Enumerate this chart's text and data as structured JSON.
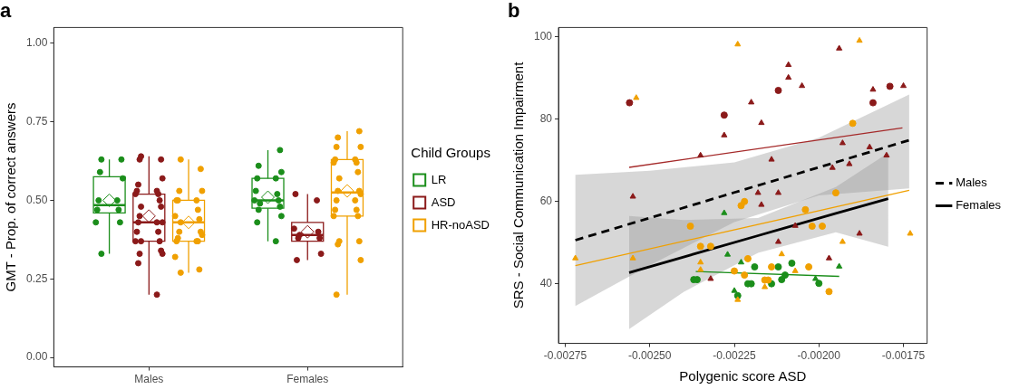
{
  "chart_data": [
    {
      "type": "box",
      "title": "a",
      "ylabel": "GMT - Prop. of correct answers",
      "legend_title": "Child Groups",
      "legend": "right",
      "categories": [
        "Males",
        "Females"
      ],
      "ylim": [
        -0.03,
        1.05
      ],
      "yticks": [
        {
          "value": 0,
          "label": "0.00"
        },
        {
          "value": 0.25,
          "label": "0.25"
        },
        {
          "value": 0.5,
          "label": "0.50"
        },
        {
          "value": 0.75,
          "label": "0.75"
        },
        {
          "value": 1,
          "label": "1.00"
        }
      ],
      "series": [
        {
          "name": "LR",
          "color": "#1b8e1b",
          "boxes": [
            {
              "low": 0.33,
              "q1": 0.46,
              "median": 0.485,
              "q3": 0.575,
              "high": 0.63,
              "mean": 0.5
            },
            {
              "low": 0.37,
              "q1": 0.475,
              "median": 0.5,
              "q3": 0.57,
              "high": 0.66,
              "mean": 0.51
            }
          ]
        },
        {
          "name": "ASD",
          "color": "#8b1a1a",
          "boxes": [
            {
              "low": 0.2,
              "q1": 0.37,
              "median": 0.43,
              "q3": 0.52,
              "high": 0.64,
              "mean": 0.45
            },
            {
              "low": 0.31,
              "q1": 0.37,
              "median": 0.39,
              "q3": 0.43,
              "high": 0.52,
              "mean": 0.4
            }
          ]
        },
        {
          "name": "HR-noASD",
          "color": "#f0a000",
          "boxes": [
            {
              "low": 0.27,
              "q1": 0.37,
              "median": 0.43,
              "q3": 0.5,
              "high": 0.63,
              "mean": 0.43
            },
            {
              "low": 0.2,
              "q1": 0.45,
              "median": 0.525,
              "q3": 0.63,
              "high": 0.72,
              "mean": 0.53
            }
          ]
        },
        {
          "type": "scatter",
          "color": "#1b8e1b",
          "x": [
            "Males",
            "Males",
            "Males",
            "Males",
            "Males",
            "Males",
            "Males",
            "Males",
            "Males",
            "Males",
            "Males",
            "Females",
            "Females",
            "Females",
            "Females",
            "Females",
            "Females",
            "Females",
            "Females",
            "Females",
            "Females",
            "Females",
            "Females",
            "Females",
            "Females",
            "Females"
          ],
          "values": [
            0.63,
            0.63,
            0.59,
            0.57,
            0.5,
            0.5,
            0.47,
            0.47,
            0.43,
            0.43,
            0.33,
            0.66,
            0.61,
            0.59,
            0.57,
            0.57,
            0.53,
            0.52,
            0.5,
            0.5,
            0.49,
            0.48,
            0.47,
            0.45,
            0.43,
            0.37
          ]
        },
        {
          "type": "scatter",
          "color": "#8b1a1a",
          "x": [
            "Males",
            "Males",
            "Males",
            "Males",
            "Males",
            "Males",
            "Males",
            "Males",
            "Males",
            "Males",
            "Males",
            "Males",
            "Males",
            "Males",
            "Males",
            "Males",
            "Males",
            "Males",
            "Males",
            "Males",
            "Males",
            "Males",
            "Males",
            "Males",
            "Males",
            "Males",
            "Females",
            "Females",
            "Females",
            "Females",
            "Females",
            "Females",
            "Females",
            "Females",
            "Females"
          ],
          "values": [
            0.64,
            0.63,
            0.63,
            0.57,
            0.55,
            0.53,
            0.53,
            0.52,
            0.52,
            0.5,
            0.48,
            0.48,
            0.45,
            0.43,
            0.43,
            0.43,
            0.4,
            0.4,
            0.37,
            0.37,
            0.37,
            0.34,
            0.33,
            0.33,
            0.3,
            0.2,
            0.52,
            0.5,
            0.41,
            0.4,
            0.39,
            0.38,
            0.38,
            0.33,
            0.31
          ]
        },
        {
          "type": "scatter",
          "color": "#f0a000",
          "x": [
            "Males",
            "Males",
            "Males",
            "Males",
            "Males",
            "Males",
            "Males",
            "Males",
            "Males",
            "Males",
            "Males",
            "Males",
            "Males",
            "Males",
            "Males",
            "Males",
            "Males",
            "Males",
            "Males",
            "Males",
            "Males",
            "Females",
            "Females",
            "Females",
            "Females",
            "Females",
            "Females",
            "Females",
            "Females",
            "Females",
            "Females",
            "Females",
            "Females",
            "Females",
            "Females",
            "Females",
            "Females",
            "Females",
            "Females",
            "Females",
            "Females",
            "Females",
            "Females",
            "Females",
            "Females"
          ],
          "values": [
            0.63,
            0.6,
            0.53,
            0.53,
            0.5,
            0.5,
            0.5,
            0.47,
            0.45,
            0.44,
            0.43,
            0.4,
            0.4,
            0.39,
            0.38,
            0.37,
            0.37,
            0.37,
            0.32,
            0.28,
            0.27,
            0.72,
            0.7,
            0.67,
            0.67,
            0.63,
            0.63,
            0.62,
            0.62,
            0.59,
            0.57,
            0.53,
            0.53,
            0.52,
            0.5,
            0.5,
            0.47,
            0.47,
            0.45,
            0.45,
            0.37,
            0.37,
            0.36,
            0.31,
            0.2
          ]
        }
      ]
    },
    {
      "type": "scatter",
      "title": "b",
      "xlabel": "Polygenic score ASD",
      "ylabel": "SRS - Social Communication Impairment",
      "legend": "right",
      "xlim": [
        -0.00277,
        -0.00168
      ],
      "ylim": [
        25.5,
        102.3
      ],
      "xticks": [
        {
          "value": -0.00275,
          "label": "-0.00275"
        },
        {
          "value": -0.0025,
          "label": "-0.00250"
        },
        {
          "value": -0.00225,
          "label": "-0.00225"
        },
        {
          "value": -0.002,
          "label": "-0.00200"
        },
        {
          "value": -0.00175,
          "label": "-0.00175"
        }
      ],
      "yticks": [
        40,
        60,
        80,
        100
      ],
      "series": [
        {
          "type": "line",
          "name": "Males",
          "color": "#000000",
          "line_style": "dashed",
          "x": [
            -0.00272,
            -0.0025,
            -0.00225,
            -0.002,
            -0.001733
          ],
          "values": [
            50.6,
            56.0,
            62.2,
            68.3,
            74.9
          ],
          "lower": [
            34.6,
            44.5,
            55.0,
            61.5,
            63.2
          ],
          "upper": [
            66.5,
            67.5,
            69.5,
            75.5,
            86.0
          ]
        },
        {
          "type": "line",
          "name": "Females",
          "color": "#000000",
          "line_style": "solid",
          "x": [
            -0.002561,
            -0.0024,
            -0.00218,
            -0.00195,
            -0.001795
          ],
          "values": [
            42.7,
            46.5,
            51.7,
            57.1,
            60.7
          ],
          "lower": [
            29.0,
            38.0,
            47.5,
            52.5,
            49.0
          ],
          "upper": [
            56.5,
            55.5,
            56.0,
            63.5,
            71.8
          ]
        },
        {
          "type": "line",
          "color": "#a52a2a",
          "x": [
            -0.002561,
            -0.001753
          ],
          "values": [
            68.3,
            77.9
          ]
        },
        {
          "type": "line",
          "color": "#f0a000",
          "x": [
            -0.00272,
            -0.001733
          ],
          "values": [
            44.4,
            62.7
          ]
        },
        {
          "type": "line",
          "color": "#1b8e1b",
          "x": [
            -0.002364,
            -0.00194
          ],
          "values": [
            43.0,
            41.8
          ]
        },
        {
          "type": "scatter",
          "color": "#8b1a1a",
          "marker": "triangle",
          "x": [
            -0.00235,
            -0.00228,
            -0.0022,
            -0.00217,
            -0.00214,
            -0.00255,
            -0.00218,
            -0.00217,
            -0.00232,
            -0.00209,
            -0.00209,
            -0.00205,
            -0.00194,
            -0.00184,
            -0.00175,
            -0.00193,
            -0.00185,
            -0.0018,
            -0.00196,
            -0.00191,
            -0.00212,
            -0.00207,
            -0.00212,
            -0.00188,
            -0.00197
          ],
          "values": [
            71.2,
            76.1,
            84.1,
            79.1,
            70.2,
            61.2,
            62.1,
            59.2,
            41.2,
            93.2,
            90.1,
            88.1,
            97.2,
            87.2,
            88.1,
            74.2,
            73.2,
            71.2,
            68.2,
            69.1,
            62.1,
            54.1,
            50.2,
            52.2,
            46.2
          ]
        },
        {
          "type": "scatter",
          "color": "#8b1a1a",
          "marker": "circle",
          "x": [
            -0.00256,
            -0.00228,
            -0.00212,
            -0.00184,
            -0.00179
          ],
          "values": [
            84.0,
            81.0,
            87.0,
            84.0,
            88.0
          ]
        },
        {
          "type": "scatter",
          "color": "#f0a000",
          "marker": "triangle",
          "x": [
            -0.00224,
            -0.00254,
            -0.00272,
            -0.00255,
            -0.00235,
            -0.00235,
            -0.00216,
            -0.00224,
            -0.00188,
            -0.00211,
            -0.00207,
            -0.00193,
            -0.00173
          ],
          "values": [
            98.2,
            85.2,
            46.2,
            46.2,
            45.2,
            43.4,
            39.2,
            36.1,
            99.1,
            47.2,
            43.1,
            50.2,
            52.2
          ]
        },
        {
          "type": "scatter",
          "color": "#f0a000",
          "marker": "circle",
          "x": [
            -0.00238,
            -0.00222,
            -0.00223,
            -0.00235,
            -0.00232,
            -0.00221,
            -0.00225,
            -0.00222,
            -0.00216,
            -0.00215,
            -0.00214,
            -0.0019,
            -0.00195,
            -0.00204,
            -0.00202,
            -0.00199,
            -0.00203,
            -0.00197
          ],
          "values": [
            54.0,
            60.0,
            59.0,
            49.1,
            49.1,
            46.1,
            43.1,
            42.1,
            40.9,
            40.9,
            44.1,
            79.0,
            62.1,
            58.0,
            54.0,
            54.0,
            44.1,
            38.1
          ]
        },
        {
          "type": "scatter",
          "color": "#1b8e1b",
          "marker": "triangle",
          "x": [
            -0.00228,
            -0.00227,
            -0.00223,
            -0.00225,
            -0.00201,
            -0.00194
          ],
          "values": [
            57.2,
            47.1,
            45.2,
            38.3,
            41.2,
            44.2
          ]
        },
        {
          "type": "scatter",
          "color": "#1b8e1b",
          "marker": "circle",
          "x": [
            -0.00237,
            -0.00236,
            -0.00224,
            -0.00221,
            -0.0022,
            -0.00219,
            -0.00214,
            -0.00212,
            -0.00211,
            -0.0021,
            -0.00208,
            -0.002
          ],
          "values": [
            41.0,
            41.0,
            37.1,
            40.0,
            40.0,
            44.1,
            40.0,
            44.1,
            41.0,
            42.1,
            45.0,
            40.1
          ]
        }
      ]
    }
  ]
}
